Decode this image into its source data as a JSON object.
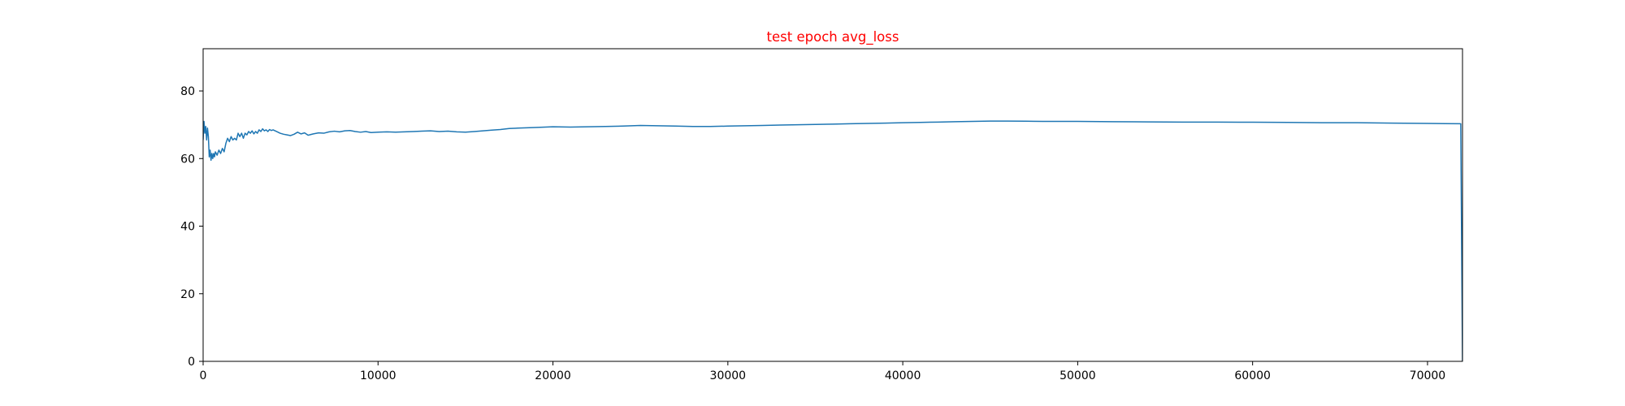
{
  "chart_data": {
    "type": "line",
    "title": "test epoch avg_loss",
    "xlabel": "",
    "ylabel": "",
    "xlim": [
      0,
      72000
    ],
    "ylim": [
      0,
      92.5
    ],
    "x_ticks": [
      0,
      10000,
      20000,
      30000,
      40000,
      50000,
      60000,
      70000
    ],
    "y_ticks": [
      0,
      20,
      40,
      60,
      80
    ],
    "grid": false,
    "legend": "none",
    "colors": {
      "title": "#ff0000",
      "line": "#1f77b4",
      "axes": "#000000"
    },
    "series": [
      {
        "x": [
          0,
          50,
          100,
          150,
          200,
          250,
          300,
          350,
          400,
          450,
          500,
          550,
          600,
          650,
          700,
          800,
          900,
          1000,
          1100,
          1200,
          1300,
          1400,
          1500,
          1600,
          1700,
          1800,
          1900,
          2000,
          2100,
          2200,
          2300,
          2400,
          2500,
          2600,
          2700,
          2800,
          2900,
          3000,
          3100,
          3200,
          3300,
          3400,
          3500,
          3600,
          3700,
          3800,
          3900,
          4000,
          4200,
          4400,
          4600,
          4800,
          5000,
          5200,
          5400,
          5600,
          5800,
          6000,
          6300,
          6600,
          6900,
          7200,
          7500,
          7800,
          8100,
          8400,
          8700,
          9000,
          9300,
          9600,
          10000,
          10500,
          11000,
          11500,
          12000,
          12500,
          13000,
          13500,
          14000,
          14500,
          15000,
          15500,
          16000,
          16500,
          17000,
          17500,
          18000,
          19000,
          20000,
          21000,
          22000,
          23000,
          24000,
          25000,
          26000,
          27000,
          28000,
          29000,
          30000,
          31000,
          32000,
          33000,
          34000,
          35000,
          36000,
          37000,
          38000,
          39000,
          40000,
          41000,
          42000,
          43000,
          44000,
          45000,
          46000,
          47000,
          48000,
          49000,
          50000,
          52000,
          54000,
          56000,
          58000,
          60000,
          62000,
          64000,
          66000,
          68000,
          70000,
          71900,
          71950,
          72000
        ],
        "values": [
          65.5,
          71,
          67.5,
          69.5,
          65.5,
          69,
          66.5,
          60.5,
          62.5,
          59.5,
          61.5,
          60,
          61.5,
          60.5,
          62,
          61,
          62.5,
          61.5,
          63,
          62,
          64.5,
          66,
          65,
          66.5,
          65.5,
          66,
          65.5,
          67.5,
          66.5,
          67.5,
          66,
          67.5,
          67,
          68,
          67.5,
          68.2,
          67.3,
          68,
          67.5,
          68.5,
          68,
          68.8,
          68.2,
          68.5,
          68,
          68.6,
          68.3,
          68.5,
          68,
          67.5,
          67.2,
          67,
          66.8,
          67.2,
          67.8,
          67.3,
          67.6,
          66.9,
          67.3,
          67.6,
          67.5,
          67.9,
          68.1,
          67.9,
          68.2,
          68.3,
          68,
          67.8,
          68,
          67.7,
          67.8,
          67.9,
          67.8,
          67.9,
          68,
          68.1,
          68.2,
          68,
          68.1,
          67.9,
          67.8,
          68,
          68.2,
          68.4,
          68.6,
          68.9,
          69,
          69.2,
          69.4,
          69.3,
          69.4,
          69.5,
          69.6,
          69.8,
          69.7,
          69.6,
          69.5,
          69.5,
          69.6,
          69.7,
          69.8,
          69.9,
          70,
          70.1,
          70.2,
          70.3,
          70.4,
          70.5,
          70.6,
          70.7,
          70.8,
          70.9,
          71,
          71.1,
          71.1,
          71.05,
          71,
          71,
          71,
          70.9,
          70.85,
          70.8,
          70.8,
          70.75,
          70.7,
          70.6,
          70.6,
          70.5,
          70.4,
          70.3,
          35,
          0
        ]
      }
    ]
  }
}
